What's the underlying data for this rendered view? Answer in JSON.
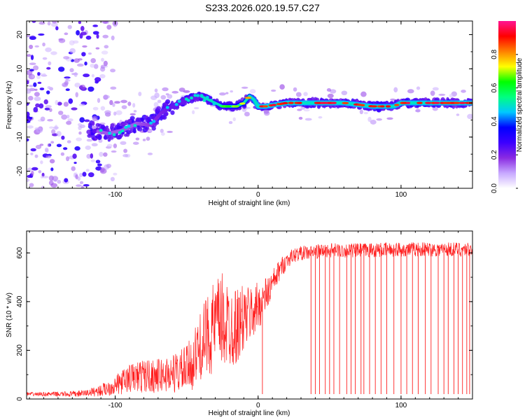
{
  "title": "S233.2026.020.19.57.C27",
  "chart_data": [
    {
      "type": "heatmap",
      "name": "spectrogram",
      "xlabel": "Height of straight line (km)",
      "ylabel": "Frequency (Hz)",
      "xlim": [
        -162,
        150
      ],
      "ylim": [
        -25,
        24
      ],
      "xticks": [
        -100,
        0,
        100
      ],
      "yticks": [
        -20,
        -10,
        0,
        10,
        20
      ],
      "ridge": {
        "x": [
          -115,
          -105,
          -95,
          -85,
          -75,
          -68,
          -60,
          -50,
          -40,
          -35,
          -30,
          -25,
          -20,
          -15,
          -10,
          -6,
          -3,
          0,
          5,
          20,
          40,
          60,
          80,
          95,
          100,
          120,
          150
        ],
        "freq": [
          -8,
          -9,
          -8,
          -6,
          -6.5,
          -3,
          -1,
          1,
          2,
          1,
          0,
          -1,
          -1,
          -1,
          0,
          2,
          1,
          -1,
          -1,
          0,
          0,
          0,
          -1,
          -1,
          0,
          0,
          0
        ],
        "amplitude": [
          0.3,
          0.3,
          0.3,
          0.3,
          0.35,
          0.4,
          0.45,
          0.45,
          0.45,
          0.5,
          0.55,
          0.6,
          0.65,
          0.7,
          0.75,
          0.8,
          0.85,
          0.9,
          0.9,
          0.92,
          0.92,
          0.9,
          0.9,
          0.88,
          0.92,
          0.92,
          0.9
        ]
      },
      "colorbar": {
        "label": "Normalized spectral amplitude",
        "range": [
          0,
          1
        ],
        "ticks": [
          "0.0",
          "0.2",
          "0.4",
          "0.6",
          "0.8"
        ],
        "colors": [
          "#ffffff",
          "#c7a8ff",
          "#8a2be2",
          "#3c00ff",
          "#0000ff",
          "#00c8ff",
          "#00ff80",
          "#00ff00",
          "#ffff00",
          "#ff8000",
          "#ff0000",
          "#ff1493"
        ]
      }
    },
    {
      "type": "line",
      "name": "snr",
      "xlabel": "Height of straight line (km)",
      "ylabel": "SNR (10 * v/v)",
      "xlim": [
        -162,
        150
      ],
      "ylim": [
        0,
        690
      ],
      "xticks": [
        -100,
        0,
        100
      ],
      "yticks": [
        0,
        200,
        400,
        600
      ],
      "color": "#ff2020",
      "series": [
        {
          "name": "SNR",
          "x": [
            -162,
            -150,
            -140,
            -130,
            -120,
            -110,
            -100,
            -90,
            -80,
            -70,
            -60,
            -50,
            -45,
            -40,
            -35,
            -30,
            -25,
            -20,
            -15,
            -10,
            -5,
            0,
            5,
            10,
            15,
            20,
            25,
            30,
            35,
            40,
            50,
            60,
            70,
            80,
            90,
            100,
            110,
            120,
            130,
            140,
            150
          ],
          "y": [
            20,
            20,
            20,
            20,
            25,
            35,
            55,
            85,
            95,
            95,
            105,
            120,
            160,
            220,
            270,
            300,
            320,
            300,
            300,
            330,
            350,
            380,
            420,
            470,
            530,
            570,
            590,
            600,
            600,
            605,
            610,
            610,
            610,
            612,
            612,
            615,
            615,
            615,
            615,
            615,
            615
          ],
          "noise_band": [
            8,
            8,
            10,
            12,
            14,
            25,
            40,
            60,
            70,
            70,
            80,
            100,
            120,
            140,
            170,
            200,
            200,
            180,
            160,
            140,
            120,
            100,
            80,
            60,
            45,
            35,
            30,
            30,
            30,
            30,
            30,
            30,
            30,
            30,
            30,
            30,
            30,
            30,
            30,
            30,
            30
          ]
        }
      ],
      "dropouts": [
        3,
        37,
        40,
        43,
        47,
        50,
        53,
        57,
        62,
        65,
        68,
        72,
        74,
        78,
        82,
        86,
        90,
        95,
        100,
        104,
        108,
        112,
        117,
        121,
        126,
        130,
        133,
        137,
        140,
        143,
        146,
        148
      ]
    }
  ]
}
